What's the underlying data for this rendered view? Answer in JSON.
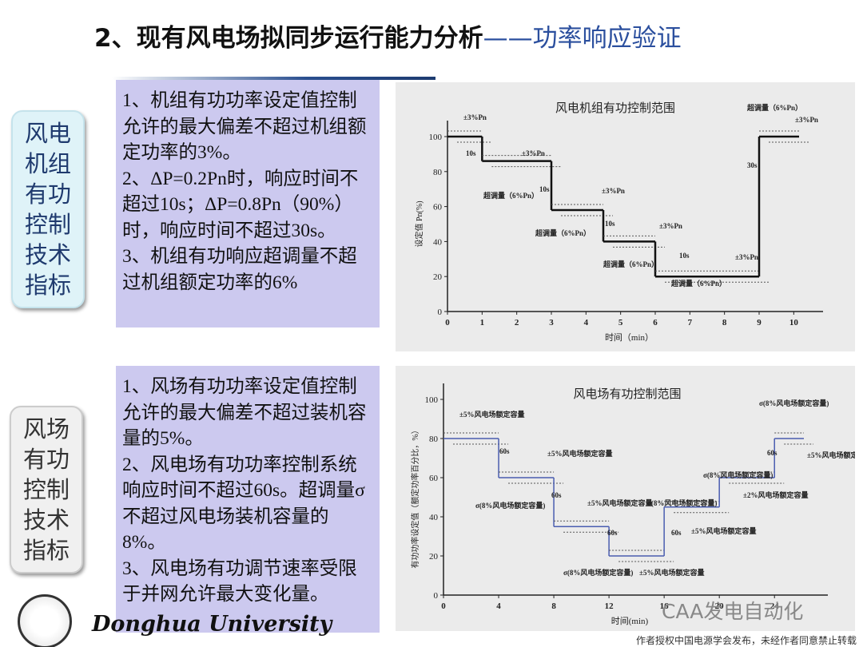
{
  "header": {
    "title": "2、现有风电场拟同步运行能力分析",
    "subtitle": "——功率响应验证"
  },
  "sections": [
    {
      "label": [
        "风电",
        "机组",
        "有功",
        "控制",
        "技术",
        "指标"
      ],
      "items": [
        "1、机组有功功率设定值控制允许的最大偏差不超过机组额定功率的3%。",
        "2、ΔP=0.2Pn时，响应时间不超过10s；ΔP=0.8Pn（90%）时，响应时间不超过30s。",
        "3、机组有功响应超调量不超过机组额定功率的6%"
      ],
      "chart": {
        "type": "step",
        "title": "风电机组有功控制范围",
        "y_label": "设定值 Pn(%)",
        "x_label": "时间（min）",
        "x": [
          0,
          1,
          3,
          4.5,
          6,
          9
        ],
        "values": [
          100,
          86,
          58,
          40,
          20,
          100
        ],
        "xlim": [
          0,
          10.5
        ],
        "ylim": [
          0,
          100
        ],
        "xticks": [
          0,
          1,
          2,
          3,
          4,
          5,
          6,
          7,
          8,
          9,
          10
        ],
        "yticks": [
          0,
          20,
          40,
          60,
          80,
          100
        ],
        "annotations": [
          "±3%Pn",
          "10s",
          "±3%Pn",
          "超调量（6%Pn）",
          "10s",
          "±3%Pn",
          "超调量（6%Pn）",
          "10s",
          "±3%Pn",
          "超调量（6%Pn）",
          "10s",
          "±3%Pn",
          "超调量（6%Pn）",
          "30s",
          "超调量（6%Pn）",
          "±3%Pn"
        ]
      }
    },
    {
      "label": [
        "风场",
        "有功",
        "控制",
        "技术",
        "指标"
      ],
      "items": [
        "1、风场有功功率设定值控制允许的最大偏差不超过装机容量的5%。",
        "2、风电场有功功率控制系统响应时间不超过60s。超调量σ不超过风电场装机容量的8%。",
        "3、风电场有功调节速率受限于并网允许最大变化量。"
      ],
      "chart": {
        "type": "step",
        "title": "风电场有功控制范围",
        "y_label": "有功功率设定值（额定功率百分比，%）",
        "x_label": "时间(min)",
        "x": [
          0,
          4,
          8,
          12,
          16,
          20,
          24
        ],
        "values": [
          80,
          60,
          35,
          20,
          45,
          60,
          80
        ],
        "xlim": [
          0,
          27
        ],
        "ylim": [
          0,
          100
        ],
        "xticks": [
          0,
          4,
          8,
          12,
          16,
          20,
          24
        ],
        "yticks": [
          0,
          20,
          40,
          60,
          80,
          100
        ],
        "annotations": [
          "±5%风电场额定容量",
          "±5%风电场额定容量",
          "60s",
          "σ(8%风电场额定容量)",
          "60s",
          "±5%风电场额定容量",
          "σ(8%风电场额定容量)",
          "60s",
          "σ(8%风电场额定容量)",
          "60s",
          "±5%风电场额定容量",
          "±5%风电场额定容量",
          "σ(8%风电场额定容量)",
          "60s",
          "±2%风电场额定容量",
          "σ(8%风电场额定容量)",
          "±5%风电场额定容量"
        ]
      }
    }
  ],
  "footer": {
    "university": "Donghua University",
    "watermark": "CAA发电自动化",
    "notice": "作者授权中国电源学会发布，未经作者同意禁止转载"
  }
}
